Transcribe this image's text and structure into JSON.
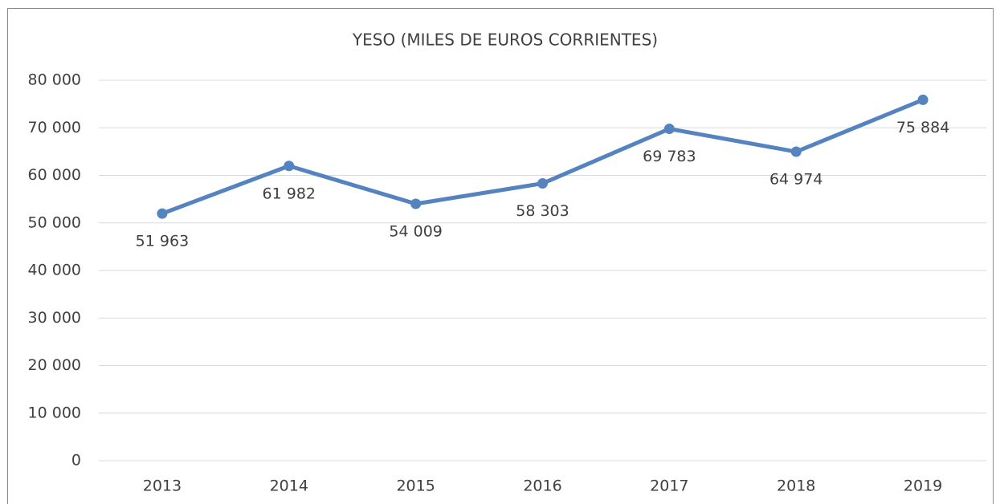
{
  "chart_data": {
    "type": "line",
    "title": "YESO (MILES DE EUROS CORRIENTES)",
    "categories": [
      "2013",
      "2014",
      "2015",
      "2016",
      "2017",
      "2018",
      "2019"
    ],
    "values": [
      51963,
      61982,
      54009,
      58303,
      69783,
      64974,
      75884
    ],
    "value_labels": [
      "51 963",
      "61 982",
      "54 009",
      "58 303",
      "69 783",
      "64 974",
      "75 884"
    ],
    "color": "#5583c0",
    "ylim": [
      0,
      80000
    ],
    "yticks": [
      0,
      {
        "value": 10000,
        "label": "10 000"
      },
      {
        "value": 20000,
        "label": "20 000"
      },
      {
        "value": 30000,
        "label": "30 000"
      },
      {
        "value": 40000,
        "label": "40 000"
      },
      {
        "value": 50000,
        "label": "50 000"
      },
      {
        "value": 60000,
        "label": "60 000"
      },
      {
        "value": 70000,
        "label": "70 000"
      },
      {
        "value": 80000,
        "label": "80 000"
      }
    ],
    "grid": true
  }
}
